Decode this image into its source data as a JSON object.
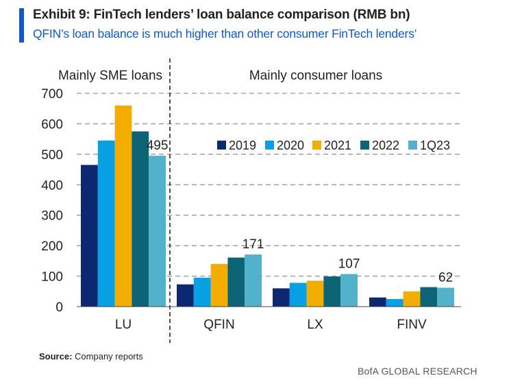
{
  "header": {
    "title": "Exhibit 9: FinTech lenders’ loan balance comparison (RMB bn)",
    "subtitle": "QFIN’s loan balance is much higher than other consumer FinTech lenders’"
  },
  "footer": {
    "source_label": "Source:",
    "source_text": "Company reports",
    "brand": "BofA GLOBAL RESEARCH"
  },
  "colors": {
    "accent": "#1159c9",
    "s2019": "#0b2870",
    "s2020": "#07a0e4",
    "s2021": "#f2ad00",
    "s2022": "#0d6475",
    "s1Q23": "#52b2cc"
  },
  "chart_data": {
    "type": "bar",
    "title": "Exhibit 9: FinTech lenders’ loan balance comparison (RMB bn)",
    "xlabel": "",
    "ylabel": "",
    "ylim": [
      0,
      700
    ],
    "yticks": [
      0,
      100,
      200,
      300,
      400,
      500,
      600,
      700
    ],
    "grid": true,
    "legend": "right-of-center",
    "categories": [
      "LU",
      "QFIN",
      "LX",
      "FINV"
    ],
    "group_labels": [
      "Mainly SME loans",
      "Mainly consumer loans"
    ],
    "series": [
      {
        "name": "2019",
        "values": [
          465,
          73,
          60,
          30
        ]
      },
      {
        "name": "2020",
        "values": [
          545,
          95,
          78,
          25
        ]
      },
      {
        "name": "2021",
        "values": [
          660,
          140,
          85,
          50
        ]
      },
      {
        "name": "2022",
        "values": [
          575,
          161,
          99,
          64
        ]
      },
      {
        "name": "1Q23",
        "values": [
          495,
          171,
          107,
          62
        ]
      }
    ],
    "data_labels": [
      "495",
      "171",
      "107",
      "62"
    ]
  }
}
